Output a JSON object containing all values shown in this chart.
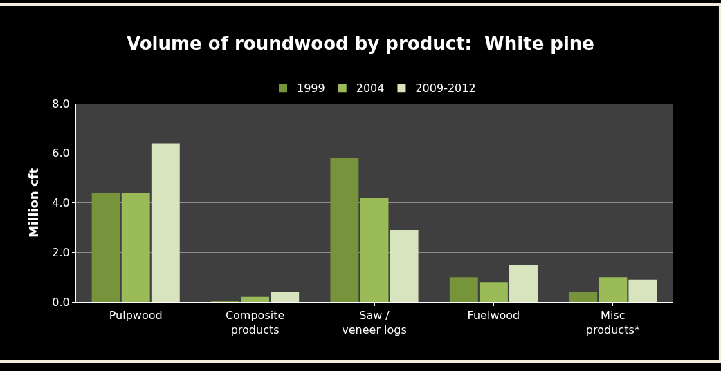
{
  "chart_data": {
    "type": "bar",
    "title": "Volume of roundwood by product:  White pine",
    "ylabel": "Million cft",
    "categories": [
      "Pulpwood",
      "Composite\nproducts",
      "Saw /\nveneer logs",
      "Fuelwood",
      "Misc\nproducts*"
    ],
    "series": [
      {
        "name": "1999",
        "color": "#77933c",
        "values": [
          4.4,
          0.05,
          5.8,
          1.0,
          0.4
        ]
      },
      {
        "name": "2004",
        "color": "#9bbb59",
        "values": [
          4.4,
          0.2,
          4.2,
          0.8,
          1.0
        ]
      },
      {
        "name": "2009-2012",
        "color": "#d7e4bd",
        "values": [
          6.4,
          0.4,
          2.9,
          1.5,
          0.9
        ]
      }
    ],
    "ylim": [
      0,
      8
    ],
    "yticks": [
      {
        "value": 0,
        "label": "0.0"
      },
      {
        "value": 2,
        "label": "2.0"
      },
      {
        "value": 4,
        "label": "4.0"
      },
      {
        "value": 6,
        "label": "6.0"
      },
      {
        "value": 8,
        "label": "8.0"
      }
    ],
    "grid": "y",
    "legend": "top"
  }
}
